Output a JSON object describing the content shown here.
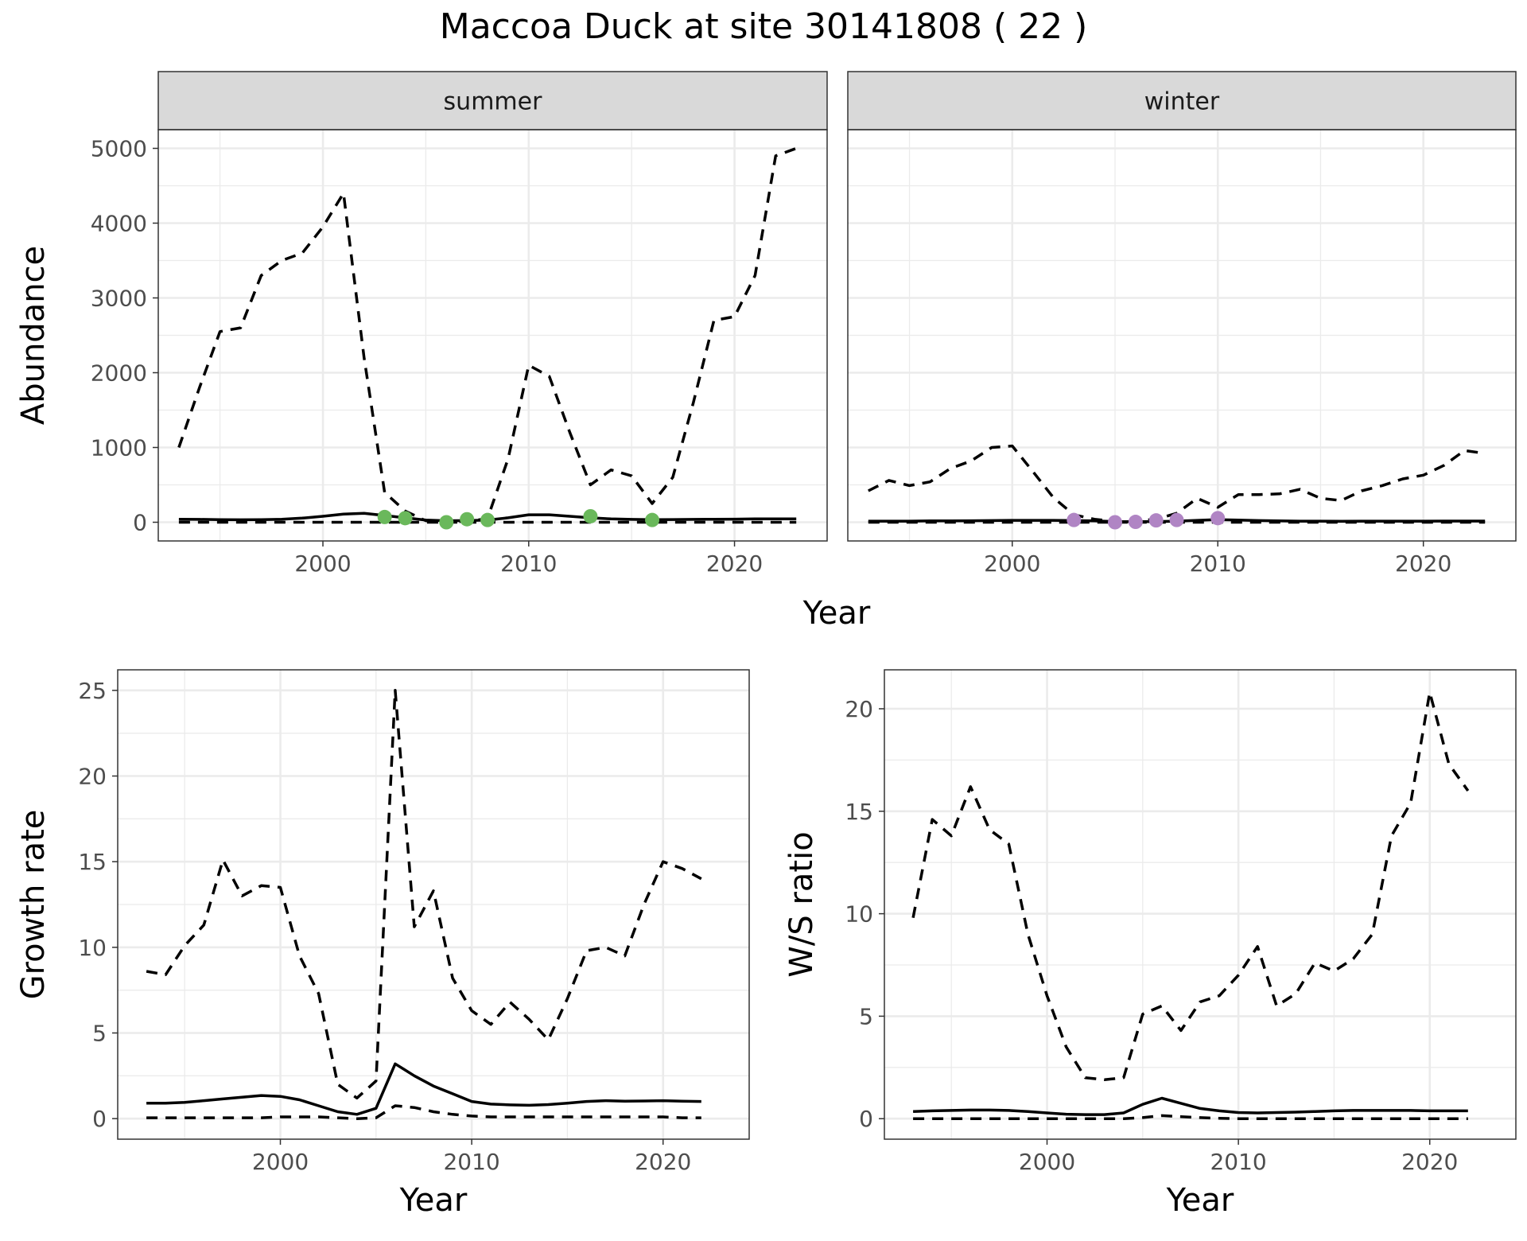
{
  "title": "Maccoa Duck at site 30141808 ( 22 )",
  "colors": {
    "summer_points": "#6ab85b",
    "winter_points": "#b085c4",
    "strip_fill": "#d9d9d9"
  },
  "chart_data": [
    {
      "type": "line",
      "panel": "summer",
      "strip_label": "summer",
      "ylabel": "Abundance",
      "xlabel": "Year",
      "xlim": [
        1992,
        2024.5
      ],
      "ylim": [
        -250,
        5250
      ],
      "xticks": [
        2000,
        2010,
        2020
      ],
      "yticks": [
        0,
        1000,
        2000,
        3000,
        4000,
        5000
      ],
      "x": [
        1993,
        1994,
        1995,
        1996,
        1997,
        1998,
        1999,
        2000,
        2001,
        2002,
        2003,
        2004,
        2005,
        2006,
        2007,
        2008,
        2009,
        2010,
        2011,
        2012,
        2013,
        2014,
        2015,
        2016,
        2017,
        2018,
        2019,
        2020,
        2021,
        2022,
        2023
      ],
      "series": [
        {
          "style": "dashed",
          "values": [
            1000,
            1800,
            2550,
            2600,
            3300,
            3500,
            3600,
            3950,
            4400,
            2200,
            400,
            150,
            20,
            10,
            10,
            50,
            850,
            2100,
            1950,
            1200,
            500,
            700,
            620,
            250,
            600,
            1600,
            2700,
            2750,
            3300,
            4900,
            5000
          ]
        },
        {
          "style": "solid",
          "values": [
            40,
            38,
            35,
            33,
            35,
            40,
            55,
            80,
            110,
            120,
            90,
            60,
            30,
            20,
            22,
            30,
            60,
            100,
            100,
            80,
            60,
            45,
            38,
            35,
            36,
            38,
            40,
            42,
            45,
            45,
            45
          ]
        },
        {
          "style": "dashed",
          "values": [
            0,
            0,
            0,
            0,
            0,
            0,
            0,
            0,
            0,
            0,
            0,
            0,
            0,
            0,
            0,
            0,
            0,
            0,
            0,
            0,
            0,
            0,
            0,
            0,
            0,
            0,
            0,
            0,
            0,
            0,
            0
          ]
        }
      ],
      "points": {
        "x": [
          2003,
          2004,
          2006,
          2007,
          2008,
          2013,
          2016
        ],
        "y": [
          70,
          55,
          0,
          40,
          30,
          80,
          30
        ]
      }
    },
    {
      "type": "line",
      "panel": "winter",
      "strip_label": "winter",
      "xlabel": "Year",
      "xlim": [
        1992,
        2024.5
      ],
      "ylim": [
        -250,
        5250
      ],
      "xticks": [
        2000,
        2010,
        2020
      ],
      "yticks": [
        0,
        1000,
        2000,
        3000,
        4000,
        5000
      ],
      "x": [
        1993,
        1994,
        1995,
        1996,
        1997,
        1998,
        1999,
        2000,
        2001,
        2002,
        2003,
        2004,
        2005,
        2006,
        2007,
        2008,
        2009,
        2010,
        2011,
        2012,
        2013,
        2014,
        2015,
        2016,
        2017,
        2018,
        2019,
        2020,
        2021,
        2022,
        2023
      ],
      "series": [
        {
          "style": "dashed",
          "values": [
            420,
            560,
            490,
            540,
            720,
            820,
            1000,
            1020,
            680,
            330,
            100,
            40,
            10,
            20,
            40,
            120,
            320,
            200,
            370,
            370,
            380,
            440,
            320,
            290,
            420,
            490,
            580,
            630,
            760,
            960,
            920
          ]
        },
        {
          "style": "solid",
          "values": [
            15,
            15,
            15,
            18,
            18,
            20,
            22,
            25,
            25,
            25,
            22,
            18,
            10,
            8,
            10,
            15,
            25,
            35,
            30,
            22,
            18,
            15,
            15,
            14,
            15,
            15,
            15,
            15,
            16,
            16,
            16
          ]
        },
        {
          "style": "dashed",
          "values": [
            0,
            0,
            0,
            0,
            0,
            0,
            0,
            0,
            0,
            0,
            0,
            0,
            0,
            0,
            0,
            0,
            0,
            0,
            0,
            0,
            0,
            0,
            0,
            0,
            0,
            0,
            0,
            0,
            0,
            0,
            0
          ]
        }
      ],
      "points": {
        "x": [
          2003,
          2005,
          2006,
          2007,
          2008,
          2010
        ],
        "y": [
          30,
          0,
          5,
          25,
          30,
          55
        ]
      }
    },
    {
      "type": "line",
      "panel": "growth",
      "ylabel": "Growth rate",
      "xlabel": "Year",
      "xlim": [
        1991.5,
        2024.5
      ],
      "ylim": [
        -1.2,
        26.2
      ],
      "xticks": [
        2000,
        2010,
        2020
      ],
      "yticks": [
        0,
        5,
        10,
        15,
        20,
        25
      ],
      "x": [
        1993,
        1994,
        1995,
        1996,
        1997,
        1998,
        1999,
        2000,
        2001,
        2002,
        2003,
        2004,
        2005,
        2006,
        2007,
        2008,
        2009,
        2010,
        2011,
        2012,
        2013,
        2014,
        2015,
        2016,
        2017,
        2018,
        2019,
        2020,
        2021,
        2022
      ],
      "series": [
        {
          "style": "dashed",
          "values": [
            8.6,
            8.4,
            10.1,
            11.3,
            15.1,
            13.0,
            13.6,
            13.5,
            9.5,
            7.3,
            2.0,
            1.2,
            2.2,
            25.0,
            11.2,
            13.3,
            8.2,
            6.3,
            5.5,
            6.8,
            5.8,
            4.6,
            7.0,
            9.8,
            10.0,
            9.5,
            12.5,
            15.0,
            14.6,
            14.0
          ]
        },
        {
          "style": "solid",
          "values": [
            0.9,
            0.9,
            0.95,
            1.05,
            1.15,
            1.25,
            1.35,
            1.3,
            1.1,
            0.75,
            0.4,
            0.25,
            0.6,
            3.2,
            2.5,
            1.9,
            1.45,
            1.0,
            0.85,
            0.8,
            0.78,
            0.82,
            0.9,
            1.0,
            1.05,
            1.02,
            1.03,
            1.05,
            1.02,
            1.0
          ]
        },
        {
          "style": "dashed",
          "values": [
            0.05,
            0.05,
            0.05,
            0.05,
            0.05,
            0.05,
            0.05,
            0.1,
            0.1,
            0.1,
            0.05,
            0.0,
            0.05,
            0.75,
            0.65,
            0.4,
            0.25,
            0.15,
            0.1,
            0.1,
            0.1,
            0.1,
            0.1,
            0.1,
            0.1,
            0.1,
            0.1,
            0.1,
            0.05,
            0.05
          ]
        }
      ]
    },
    {
      "type": "line",
      "panel": "ratio",
      "ylabel": "W/S ratio",
      "xlabel": "Year",
      "xlim": [
        1991.5,
        2024.5
      ],
      "ylim": [
        -1.0,
        21.9
      ],
      "xticks": [
        2000,
        2010,
        2020
      ],
      "yticks": [
        0,
        5,
        10,
        15,
        20
      ],
      "x": [
        1993,
        1994,
        1995,
        1996,
        1997,
        1998,
        1999,
        2000,
        2001,
        2002,
        2003,
        2004,
        2005,
        2006,
        2007,
        2008,
        2009,
        2010,
        2011,
        2012,
        2013,
        2014,
        2015,
        2016,
        2017,
        2018,
        2019,
        2020,
        2021,
        2022
      ],
      "series": [
        {
          "style": "dashed",
          "values": [
            9.8,
            14.6,
            13.8,
            16.2,
            14.1,
            13.4,
            9.0,
            6.0,
            3.5,
            2.0,
            1.9,
            2.0,
            5.1,
            5.5,
            4.3,
            5.7,
            6.0,
            7.0,
            8.4,
            5.5,
            6.1,
            7.6,
            7.2,
            7.8,
            9.0,
            13.8,
            15.4,
            20.8,
            17.3,
            16.0
          ]
        },
        {
          "style": "solid",
          "values": [
            0.35,
            0.38,
            0.4,
            0.42,
            0.42,
            0.4,
            0.35,
            0.28,
            0.22,
            0.2,
            0.2,
            0.28,
            0.7,
            1.0,
            0.75,
            0.5,
            0.38,
            0.3,
            0.28,
            0.3,
            0.32,
            0.35,
            0.38,
            0.4,
            0.4,
            0.4,
            0.4,
            0.38,
            0.38,
            0.38
          ]
        },
        {
          "style": "dashed",
          "values": [
            0.0,
            0.0,
            0.0,
            0.0,
            0.0,
            0.0,
            0.0,
            0.0,
            0.0,
            0.0,
            0.0,
            0.0,
            0.05,
            0.15,
            0.1,
            0.05,
            0.02,
            0.0,
            0.0,
            0.0,
            0.0,
            0.0,
            0.0,
            0.0,
            0.0,
            0.0,
            0.0,
            0.0,
            0.0,
            0.0
          ]
        }
      ]
    }
  ]
}
